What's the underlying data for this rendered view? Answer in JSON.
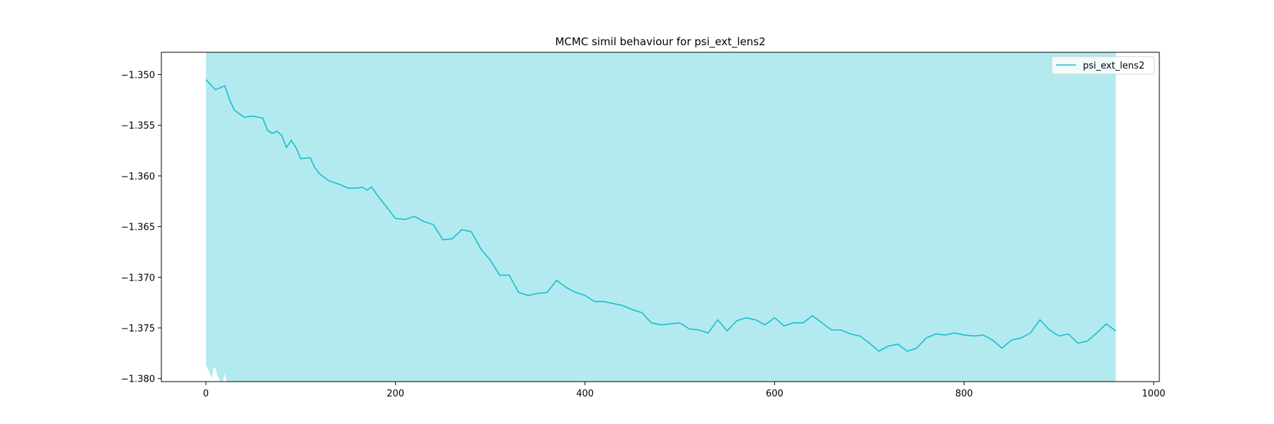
{
  "chart_data": {
    "type": "line",
    "title": "MCMC simil behaviour for psi_ext_lens2",
    "xlabel": "",
    "ylabel": "",
    "xlim": [
      -47,
      1006
    ],
    "ylim": [
      -1.3803,
      -1.3478
    ],
    "xticks": [
      0,
      200,
      400,
      600,
      800,
      1000
    ],
    "xtick_labels": [
      "0",
      "200",
      "400",
      "600",
      "800",
      "1000"
    ],
    "yticks": [
      -1.35,
      -1.355,
      -1.36,
      -1.365,
      -1.37,
      -1.375,
      -1.38
    ],
    "ytick_labels": [
      "−1.350",
      "−1.355",
      "−1.360",
      "−1.365",
      "−1.370",
      "−1.375",
      "−1.380"
    ],
    "grid": false,
    "legend": {
      "position": "top-right",
      "entries": [
        "psi_ext_lens2"
      ]
    },
    "colors": {
      "line": "#17becf",
      "band": "#17becf",
      "band_opacity": 0.33
    },
    "series": [
      {
        "name": "psi_ext_lens2",
        "x": [
          0,
          10,
          20,
          25,
          30,
          40,
          50,
          60,
          65,
          70,
          75,
          80,
          85,
          90,
          95,
          100,
          110,
          115,
          120,
          130,
          140,
          150,
          160,
          165,
          170,
          175,
          180,
          190,
          200,
          210,
          220,
          230,
          240,
          250,
          260,
          270,
          280,
          290,
          300,
          310,
          320,
          330,
          340,
          350,
          360,
          370,
          380,
          390,
          400,
          410,
          420,
          430,
          440,
          450,
          460,
          470,
          480,
          490,
          500,
          510,
          520,
          530,
          540,
          550,
          560,
          570,
          580,
          590,
          600,
          610,
          620,
          630,
          640,
          650,
          660,
          670,
          680,
          690,
          700,
          710,
          720,
          730,
          740,
          750,
          760,
          770,
          780,
          790,
          800,
          810,
          820,
          830,
          840,
          850,
          860,
          870,
          880,
          890,
          900,
          910,
          920,
          930,
          940,
          950,
          960
        ],
        "y": [
          -1.3505,
          -1.3515,
          -1.3511,
          -1.3525,
          -1.3535,
          -1.3542,
          -1.3541,
          -1.3543,
          -1.3555,
          -1.3558,
          -1.3556,
          -1.356,
          -1.3572,
          -1.3565,
          -1.3572,
          -1.3583,
          -1.3582,
          -1.3592,
          -1.3598,
          -1.3605,
          -1.3608,
          -1.3612,
          -1.3612,
          -1.3611,
          -1.3614,
          -1.3611,
          -1.3618,
          -1.363,
          -1.3642,
          -1.3643,
          -1.364,
          -1.3645,
          -1.3648,
          -1.3663,
          -1.3662,
          -1.3653,
          -1.3655,
          -1.3672,
          -1.3683,
          -1.3698,
          -1.3698,
          -1.3715,
          -1.3718,
          -1.3716,
          -1.3715,
          -1.3703,
          -1.371,
          -1.3715,
          -1.3718,
          -1.3724,
          -1.3724,
          -1.3726,
          -1.3728,
          -1.3732,
          -1.3735,
          -1.3745,
          -1.3747,
          -1.3746,
          -1.3745,
          -1.3751,
          -1.3752,
          -1.3755,
          -1.3742,
          -1.3753,
          -1.3743,
          -1.374,
          -1.3742,
          -1.3747,
          -1.374,
          -1.3748,
          -1.3745,
          -1.3745,
          -1.3738,
          -1.3745,
          -1.3752,
          -1.3752,
          -1.3756,
          -1.3758,
          -1.3765,
          -1.3773,
          -1.3768,
          -1.3766,
          -1.3773,
          -1.377,
          -1.376,
          -1.3756,
          -1.3757,
          -1.3755,
          -1.3757,
          -1.3758,
          -1.3757,
          -1.3762,
          -1.377,
          -1.3762,
          -1.376,
          -1.3755,
          -1.3742,
          -1.3752,
          -1.3758,
          -1.3756,
          -1.3765,
          -1.3763,
          -1.3755,
          -1.3746,
          -1.3753
        ]
      }
    ],
    "band": {
      "x_start": 0,
      "x_end": 960,
      "upper": -1.3478,
      "lower_points": [
        [
          0,
          -1.3787
        ],
        [
          3,
          -1.3792
        ],
        [
          6,
          -1.38
        ],
        [
          8,
          -1.379
        ],
        [
          10,
          -1.3789
        ],
        [
          12,
          -1.3797
        ],
        [
          15,
          -1.3803
        ],
        [
          18,
          -1.3803
        ],
        [
          20,
          -1.3795
        ],
        [
          22,
          -1.3803
        ]
      ],
      "lower_rest": -1.3803
    }
  }
}
